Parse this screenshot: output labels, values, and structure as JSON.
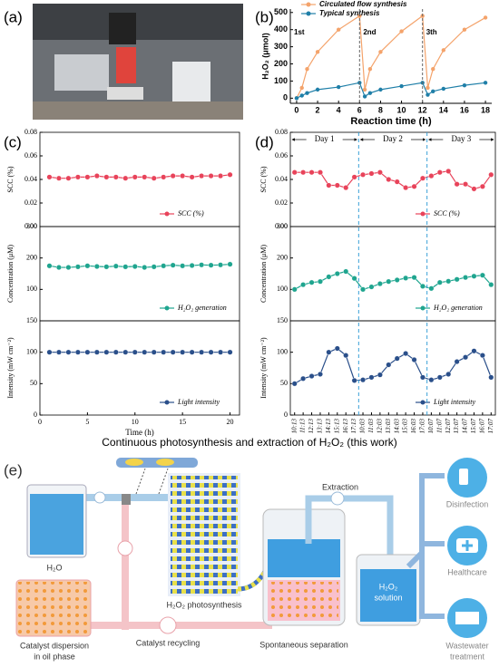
{
  "photo": {
    "panel_label": "(a)"
  },
  "chart_data": [
    {
      "type": "line",
      "panel_label": "(b)",
      "xlabel": "Reaction time (h)",
      "ylabel": "H₂O₂ (μmol)",
      "x": [
        0,
        0.5,
        1,
        2,
        4,
        6,
        6.5,
        7,
        8,
        10,
        12,
        12.5,
        13,
        14,
        16,
        18
      ],
      "xlim": [
        -0.6,
        18.6
      ],
      "xticks": [
        0,
        2,
        4,
        6,
        8,
        10,
        12,
        14,
        16,
        18
      ],
      "ylim": [
        -30,
        520
      ],
      "yticks": [
        0,
        100,
        200,
        300,
        400,
        500
      ],
      "cycle_boundaries": [
        6,
        12
      ],
      "cycle_labels": [
        "1st",
        "2nd",
        "3th"
      ],
      "legend": "upper left",
      "series": [
        {
          "name": "Circulated flow synthesis",
          "color": "#f4a36b",
          "values": [
            0,
            60,
            170,
            270,
            400,
            480,
            50,
            170,
            270,
            390,
            480,
            60,
            170,
            280,
            400,
            470
          ]
        },
        {
          "name": "Typical synthesis",
          "color": "#1f7fa8",
          "values": [
            0,
            15,
            30,
            50,
            65,
            90,
            10,
            30,
            50,
            70,
            90,
            20,
            40,
            55,
            75,
            90
          ]
        }
      ]
    },
    {
      "type": "line",
      "panel_label": "(c)",
      "xlabel": "Time (h)",
      "x": [
        1,
        2,
        3,
        4,
        5,
        6,
        7,
        8,
        9,
        10,
        11,
        12,
        13,
        14,
        15,
        16,
        17,
        18,
        19,
        20
      ],
      "xlim": [
        0,
        21
      ],
      "xticks": [
        0,
        5,
        10,
        15,
        20
      ],
      "legend": "lower right",
      "panels": [
        {
          "ylabel": "SCC (%)",
          "ylim": [
            0,
            0.08
          ],
          "yticks": [
            {
              "value": 0,
              "label": "0.00"
            },
            0.02,
            0.04,
            0.06,
            0.08
          ],
          "series": [
            {
              "name": "SCC (%)",
              "color": "#e8435a",
              "values": [
                0.042,
                0.041,
                0.041,
                0.042,
                0.042,
                0.043,
                0.042,
                0.042,
                0.041,
                0.042,
                0.042,
                0.041,
                0.042,
                0.043,
                0.043,
                0.042,
                0.043,
                0.043,
                0.043,
                0.044
              ]
            }
          ]
        },
        {
          "ylabel": "Concentration (μM)",
          "ylim": [
            0,
            300
          ],
          "yticks": [
            100,
            200,
            300
          ],
          "series": [
            {
              "name": "H₂O₂ generation",
              "color": "#1fa58f",
              "values": [
                175,
                170,
                170,
                172,
                175,
                173,
                172,
                174,
                172,
                173,
                170,
                172,
                175,
                177,
                175,
                176,
                178,
                177,
                178,
                180
              ]
            }
          ]
        },
        {
          "ylabel": "Intensity (mW cm⁻²)",
          "ylim": [
            0,
            150
          ],
          "yticks": [
            0,
            50,
            100,
            150
          ],
          "series": [
            {
              "name": "Light intensity",
              "color": "#2a4f8a",
              "values": [
                100,
                100,
                100,
                100,
                100,
                100,
                100,
                100,
                100,
                100,
                100,
                100,
                100,
                100,
                100,
                100,
                100,
                100,
                100,
                100
              ]
            }
          ]
        }
      ]
    },
    {
      "type": "line",
      "panel_label": "(d)",
      "categories": [
        "10:13",
        "11:13",
        "12:13",
        "13:13",
        "14:13",
        "15:13",
        "16:13",
        "17:13",
        "10:03",
        "11:03",
        "12:03",
        "13:03",
        "14:03",
        "15:03",
        "16:03",
        "17:03",
        "10:07",
        "11:07",
        "12:07",
        "13:07",
        "14:07",
        "15:07",
        "16:07",
        "17:07"
      ],
      "days": [
        "Day 1",
        "Day 2",
        "Day 3"
      ],
      "legend": "lower right",
      "panels": [
        {
          "ylabel": "SCC (%)",
          "ylim": [
            0,
            0.08
          ],
          "yticks": [
            {
              "value": 0,
              "label": "0.00"
            },
            0.02,
            0.04,
            0.06,
            0.08
          ],
          "series": [
            {
              "name": "SCC (%)",
              "color": "#e8435a",
              "values": [
                0.046,
                0.046,
                0.046,
                0.046,
                0.035,
                0.035,
                0.033,
                0.042,
                0.044,
                0.045,
                0.046,
                0.04,
                0.038,
                0.033,
                0.034,
                0.041,
                0.043,
                0.046,
                0.047,
                0.036,
                0.036,
                0.032,
                0.034,
                0.044
              ]
            }
          ]
        },
        {
          "ylabel": "Concentration (μM)",
          "ylim": [
            0,
            300
          ],
          "yticks": [
            100,
            200,
            300
          ],
          "series": [
            {
              "name": "H₂O₂ generation",
              "color": "#1fa58f",
              "values": [
                100,
                115,
                122,
                125,
                140,
                150,
                157,
                135,
                100,
                108,
                118,
                125,
                130,
                136,
                138,
                110,
                103,
                122,
                126,
                132,
                138,
                142,
                145,
                115
              ]
            }
          ]
        },
        {
          "ylabel": "Intensity (mW cm⁻²)",
          "ylim": [
            0,
            150
          ],
          "yticks": [
            0,
            50,
            100,
            150
          ],
          "series": [
            {
              "name": "Light intensity",
              "color": "#2a4f8a",
              "values": [
                50,
                58,
                62,
                65,
                100,
                106,
                95,
                55,
                56,
                60,
                64,
                80,
                90,
                98,
                88,
                60,
                56,
                60,
                65,
                85,
                92,
                102,
                95,
                60
              ]
            }
          ]
        }
      ]
    }
  ],
  "diagram": {
    "caption": "Continuous photosynthesis and extraction of H₂O₂ (this work)",
    "panel_label": "(e)",
    "water": "H₂O",
    "oil_phase": [
      "Catalyst dispersion",
      "in oil phase"
    ],
    "recycling": "Catalyst recycling",
    "photosynthesis": "H₂O₂ photosynthesis",
    "separation": "Spontaneous separation",
    "extraction": "Extraction",
    "solution": [
      "H₂O₂",
      "solution"
    ],
    "uses": [
      "Disinfection",
      "Healthcare"
    ],
    "wastewater": [
      "Wastewater",
      "treatment"
    ]
  }
}
